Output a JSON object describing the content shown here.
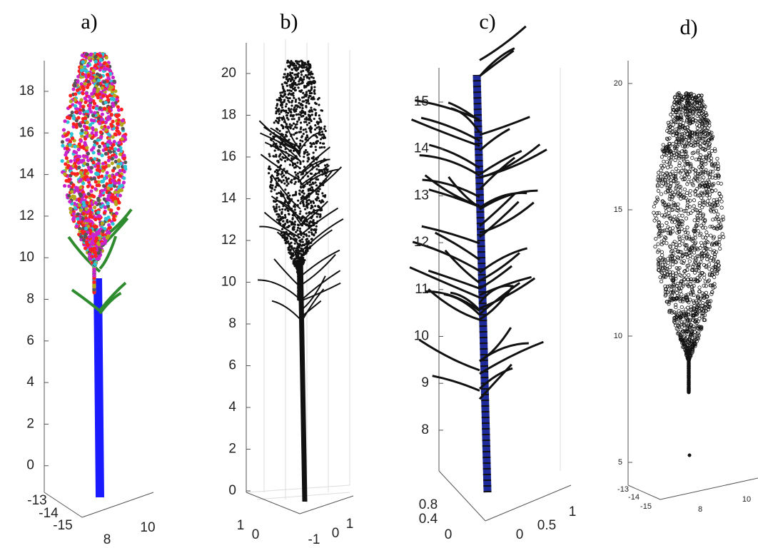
{
  "panels": [
    {
      "label": "a)",
      "z_ticks": [
        "18",
        "16",
        "14",
        "12",
        "10",
        "8",
        "6",
        "4",
        "2",
        "0"
      ],
      "bottom_ticks": [
        "-13",
        "-14",
        "-15",
        "8",
        "10"
      ]
    },
    {
      "label": "b)",
      "z_ticks": [
        "20",
        "18",
        "16",
        "14",
        "12",
        "10",
        "8",
        "6",
        "4",
        "2",
        "0"
      ],
      "bottom_ticks": [
        "1",
        "0",
        "-1",
        "0",
        "1"
      ]
    },
    {
      "label": "c)",
      "z_ticks": [
        "15",
        "14",
        "13",
        "12",
        "11",
        "10",
        "9",
        "8"
      ],
      "bottom_ticks": [
        "0.8",
        "0.4",
        "0",
        "0",
        "0.5",
        "1"
      ]
    },
    {
      "label": "d)",
      "z_ticks": [
        "20",
        "15",
        "10",
        "5"
      ],
      "bottom_ticks": [
        "-13",
        "-14",
        "-15",
        "8",
        "10"
      ]
    }
  ]
}
